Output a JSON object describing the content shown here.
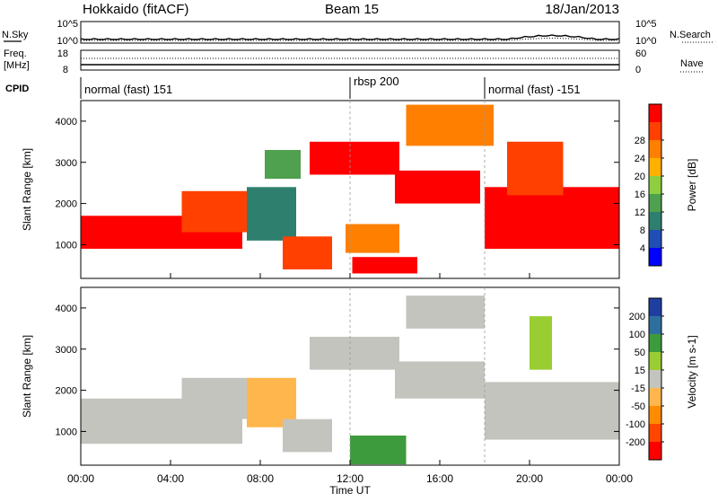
{
  "header": {
    "station": "Hokkaido (fitACF)",
    "beam": "Beam 15",
    "date": "18/Jan/2013"
  },
  "noise_panel": {
    "left_label": "N.Sky",
    "left_ticks": [
      "10^5",
      "10^0"
    ],
    "right_label": "N.Search",
    "right_ticks": [
      "10^5",
      "10^0"
    ],
    "right_style_hint": "......"
  },
  "freq_panel": {
    "left_label_1": "Freq.",
    "left_label_2": "[MHz]",
    "left_ticks": [
      "18",
      "8"
    ],
    "right_label": "Nave",
    "right_ticks": [
      "60",
      "0"
    ],
    "right_style_hint": "....."
  },
  "cpid": {
    "label": "CPID",
    "segments": [
      {
        "text": "normal (fast) 151",
        "start_hour": 0
      },
      {
        "text": "rbsp 200",
        "start_hour": 12
      },
      {
        "text": "normal (fast) -151",
        "start_hour": 18
      }
    ]
  },
  "colors": {
    "power": [
      "#0000ff",
      "#1f4fb4",
      "#2f7f6f",
      "#4fa04f",
      "#8fcf3f",
      "#ffb000",
      "#ff7f00",
      "#ff4000",
      "#ff0000"
    ],
    "velocity": [
      "#ff0000",
      "#ff4500",
      "#ff8c00",
      "#ffb74d",
      "#c4c4bf",
      "#9acd32",
      "#3d9b3d",
      "#2f6f9f",
      "#1f3fa0"
    ],
    "grey": "#c4c4bf"
  },
  "chart_data": [
    {
      "type": "heatmap",
      "title": "Power",
      "xlabel": "Time UT",
      "ylabel": "Slant Range [km]",
      "x_ticks": [
        "00:00",
        "04:00",
        "08:00",
        "12:00",
        "16:00",
        "20:00",
        "00:00"
      ],
      "x_range_hours": [
        0,
        24
      ],
      "ylim": [
        180,
        4500
      ],
      "y_ticks": [
        1000,
        2000,
        3000,
        4000
      ],
      "colorbar": {
        "label": "Power [dB]",
        "ticks": [
          4,
          8,
          12,
          16,
          20,
          24,
          28
        ],
        "range": [
          0,
          30
        ]
      },
      "regions": [
        {
          "t0": 0.0,
          "t1": 7.2,
          "r0": 900,
          "r1": 1700,
          "value": 27
        },
        {
          "t0": 4.5,
          "t1": 7.5,
          "r0": 1300,
          "r1": 2300,
          "value": 24
        },
        {
          "t0": 7.4,
          "t1": 9.6,
          "r0": 1100,
          "r1": 2400,
          "value": 8
        },
        {
          "t0": 8.2,
          "t1": 9.8,
          "r0": 2600,
          "r1": 3300,
          "value": 13
        },
        {
          "t0": 9.0,
          "t1": 11.2,
          "r0": 400,
          "r1": 1200,
          "value": 26
        },
        {
          "t0": 10.2,
          "t1": 14.2,
          "r0": 2700,
          "r1": 3500,
          "value": 27
        },
        {
          "t0": 11.8,
          "t1": 14.2,
          "r0": 800,
          "r1": 1500,
          "value": 22
        },
        {
          "t0": 12.1,
          "t1": 15.0,
          "r0": 300,
          "r1": 700,
          "value": 27
        },
        {
          "t0": 14.0,
          "t1": 17.8,
          "r0": 2000,
          "r1": 2800,
          "value": 28
        },
        {
          "t0": 14.5,
          "t1": 18.4,
          "r0": 3400,
          "r1": 4400,
          "value": 22
        },
        {
          "t0": 18.0,
          "t1": 24.0,
          "r0": 900,
          "r1": 2400,
          "value": 28
        },
        {
          "t0": 19.0,
          "t1": 21.5,
          "r0": 2200,
          "r1": 3500,
          "value": 24
        }
      ]
    },
    {
      "type": "heatmap",
      "title": "Velocity",
      "xlabel": "Time UT",
      "ylabel": "Slant Range [km]",
      "x_ticks": [
        "00:00",
        "04:00",
        "08:00",
        "12:00",
        "16:00",
        "20:00",
        "00:00"
      ],
      "x_range_hours": [
        0,
        24
      ],
      "ylim": [
        180,
        4500
      ],
      "y_ticks": [
        1000,
        2000,
        3000,
        4000
      ],
      "colorbar": {
        "label": "Velocity [m s-1]",
        "ticks": [
          -200,
          -100,
          -50,
          -15,
          15,
          50,
          100,
          200
        ],
        "range": [
          -250,
          250
        ]
      },
      "regions": [
        {
          "t0": 0.0,
          "t1": 7.2,
          "r0": 700,
          "r1": 1800,
          "value": 0
        },
        {
          "t0": 4.5,
          "t1": 7.5,
          "r0": 1300,
          "r1": 2300,
          "value": 0
        },
        {
          "t0": 7.4,
          "t1": 9.6,
          "r0": 1100,
          "r1": 2300,
          "value": -40
        },
        {
          "t0": 9.0,
          "t1": 11.2,
          "r0": 500,
          "r1": 1300,
          "value": 0
        },
        {
          "t0": 12.0,
          "t1": 14.5,
          "r0": 200,
          "r1": 900,
          "value": 70
        },
        {
          "t0": 10.2,
          "t1": 14.2,
          "r0": 2500,
          "r1": 3300,
          "value": 0
        },
        {
          "t0": 14.0,
          "t1": 18.0,
          "r0": 1800,
          "r1": 2700,
          "value": 0
        },
        {
          "t0": 14.5,
          "t1": 18.0,
          "r0": 3500,
          "r1": 4300,
          "value": 0
        },
        {
          "t0": 18.0,
          "t1": 24.0,
          "r0": 800,
          "r1": 2200,
          "value": 0
        },
        {
          "t0": 20.0,
          "t1": 21.0,
          "r0": 2500,
          "r1": 3800,
          "value": 30
        }
      ]
    }
  ]
}
